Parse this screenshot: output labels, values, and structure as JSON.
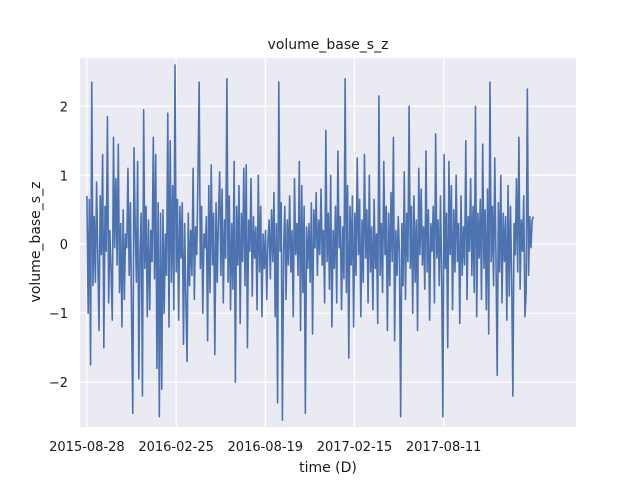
{
  "chart_data": {
    "type": "line",
    "title": "volume_base_s_z",
    "xlabel": "time (D)",
    "ylabel": "volume_base_s_z",
    "x_tick_labels": [
      "2015-08-28",
      "2016-02-25",
      "2016-08-19",
      "2017-02-15",
      "2017-08-11"
    ],
    "y_tick_labels": [
      "2",
      "1",
      "0",
      "−1",
      "−2"
    ],
    "y_tick_values": [
      2,
      1,
      0,
      -1,
      -2
    ],
    "xlim": [
      "2015-08-14",
      "2018-05-11"
    ],
    "ylim": [
      -2.65,
      2.7
    ],
    "grid": true,
    "background_color": "#eaeaf2",
    "grid_color": "#ffffff",
    "line_color": "#4c72b0",
    "series": [
      {
        "x_start": "2015-08-28",
        "x_end": "2018-02-14",
        "values": [
          0.7,
          -1.0,
          0.65,
          -1.75,
          2.35,
          -0.6,
          0.4,
          -0.55,
          0.9,
          -0.2,
          -1.25,
          0.7,
          -0.15,
          1.3,
          -1.5,
          0.55,
          -0.1,
          1.85,
          -0.85,
          0.2,
          -0.4,
          -1.1,
          1.55,
          -0.05,
          0.95,
          -0.3,
          1.45,
          -0.7,
          0.3,
          -1.2,
          0.5,
          -0.8,
          0.15,
          -0.05,
          1.1,
          -0.45,
          0.6,
          -1.05,
          -2.45,
          1.4,
          0.25,
          -0.55,
          1.2,
          -1.95,
          -0.1,
          0.45,
          -2.2,
          1.95,
          -0.35,
          0.55,
          -1.05,
          0.35,
          -0.95,
          0.2,
          -0.25,
          1.55,
          -0.5,
          1.3,
          -1.8,
          0.6,
          -2.5,
          0.45,
          -2.1,
          0.5,
          -1.0,
          0.15,
          -0.45,
          1.9,
          -1.2,
          1.5,
          -0.55,
          0.85,
          -0.95,
          2.6,
          -0.4,
          0.65,
          -1.1,
          0.55,
          -0.2,
          0.6,
          -1.45,
          0.3,
          -0.85,
          -1.7,
          0.45,
          -0.6,
          0.2,
          -0.45,
          1.1,
          -0.8,
          0.25,
          -0.15,
          0.95,
          2.35,
          -0.35,
          0.55,
          -1.0,
          0.15,
          -0.05,
          0.4,
          -1.4,
          0.85,
          -0.7,
          1.15,
          -0.3,
          0.45,
          -1.6,
          0.6,
          -0.55,
          0.4,
          1.05,
          -0.45,
          0.8,
          -0.85,
          0.35,
          -0.2,
          2.4,
          -0.55,
          0.7,
          -0.95,
          0.3,
          -0.65,
          1.2,
          -2.0,
          0.55,
          -0.3,
          0.85,
          -1.15,
          0.45,
          -0.25,
          1.1,
          -0.6,
          1.15,
          -1.5,
          0.35,
          -0.1,
          0.95,
          -0.75,
          0.4,
          -0.2,
          0.25,
          -0.95,
          1.0,
          -0.4,
          0.55,
          -1.05,
          0.15,
          -0.35,
          0.2,
          -0.8,
          0.05,
          0.35,
          -0.5,
          0.5,
          -0.25,
          0.75,
          -1.05,
          0.3,
          -2.3,
          2.35,
          -0.1,
          0.6,
          -2.55,
          -0.1,
          0.55,
          -0.8,
          0.35,
          -0.3,
          0.7,
          -0.4,
          0.2,
          -1.05,
          0.95,
          -0.15,
          0.3,
          -0.45,
          1.2,
          -1.25,
          0.85,
          -0.7,
          0.55,
          -2.45,
          0.25,
          -0.35,
          0.3,
          -0.55,
          0.6,
          -1.3,
          0.5,
          -0.05,
          0.75,
          -0.45,
          0.35,
          -0.15,
          0.8,
          -0.3,
          0.2,
          -0.85,
          1.65,
          -0.25,
          0.45,
          -0.65,
          1.0,
          -1.2,
          0.2,
          -0.35,
          0.55,
          -0.85,
          1.35,
          -0.05,
          0.4,
          -0.95,
          0.25,
          -0.5,
          2.4,
          -0.7,
          0.85,
          -1.65,
          0.55,
          -0.3,
          0.7,
          -1.2,
          0.45,
          -0.45,
          1.25,
          -0.15,
          0.65,
          -1.05,
          0.35,
          -0.55,
          1.3,
          -0.2,
          0.5,
          -0.85,
          1.0,
          -0.4,
          0.25,
          -0.95,
          0.65,
          -0.35,
          0.15,
          -1.15,
          2.15,
          -0.45,
          0.3,
          -0.7,
          1.2,
          -0.15,
          0.55,
          -1.25,
          0.45,
          -0.6,
          0.75,
          -0.25,
          1.55,
          -1.4,
          0.2,
          -0.45,
          0.4,
          -0.15,
          -2.5,
          0.3,
          -0.6,
          1.05,
          -0.8,
          0.45,
          -0.25,
          2.0,
          -0.35,
          0.55,
          -1.0,
          0.7,
          -0.55,
          0.35,
          -1.25,
          1.1,
          -0.15,
          0.8,
          -0.3,
          0.25,
          -0.65,
          1.35,
          -0.4,
          0.5,
          -1.1,
          0.3,
          -0.1,
          0.55,
          -0.85,
          1.6,
          -0.2,
          0.35,
          -0.6,
          0.7,
          -0.5,
          -2.5,
          1.3,
          -0.35,
          0.45,
          -1.5,
          1.2,
          -0.15,
          0.85,
          -0.95,
          0.5,
          -0.4,
          1.0,
          -0.25,
          0.3,
          -1.15,
          0.7,
          -0.45,
          0.25,
          -0.3,
          1.5,
          -0.8,
          0.4,
          -0.1,
          0.95,
          -0.45,
          0.55,
          -0.7,
          2.0,
          -1.05,
          0.45,
          -0.2,
          0.65,
          -0.8,
          1.45,
          -0.35,
          0.5,
          -0.95,
          0.8,
          -1.3,
          2.35,
          -0.25,
          0.55,
          -0.6,
          1.25,
          -0.2,
          -1.9,
          0.6,
          -0.4,
          1.0,
          -0.85,
          0.45,
          -0.25,
          0.4,
          -1.1,
          0.85,
          -0.75,
          0.55,
          -0.5,
          -2.2,
          0.3,
          -0.15,
          0.95,
          -0.4,
          1.55,
          -0.65,
          0.35,
          -0.1,
          0.7,
          -1.05,
          -0.7,
          2.25,
          -0.45,
          0.4,
          -0.05,
          0.35,
          0.4
        ]
      }
    ]
  }
}
